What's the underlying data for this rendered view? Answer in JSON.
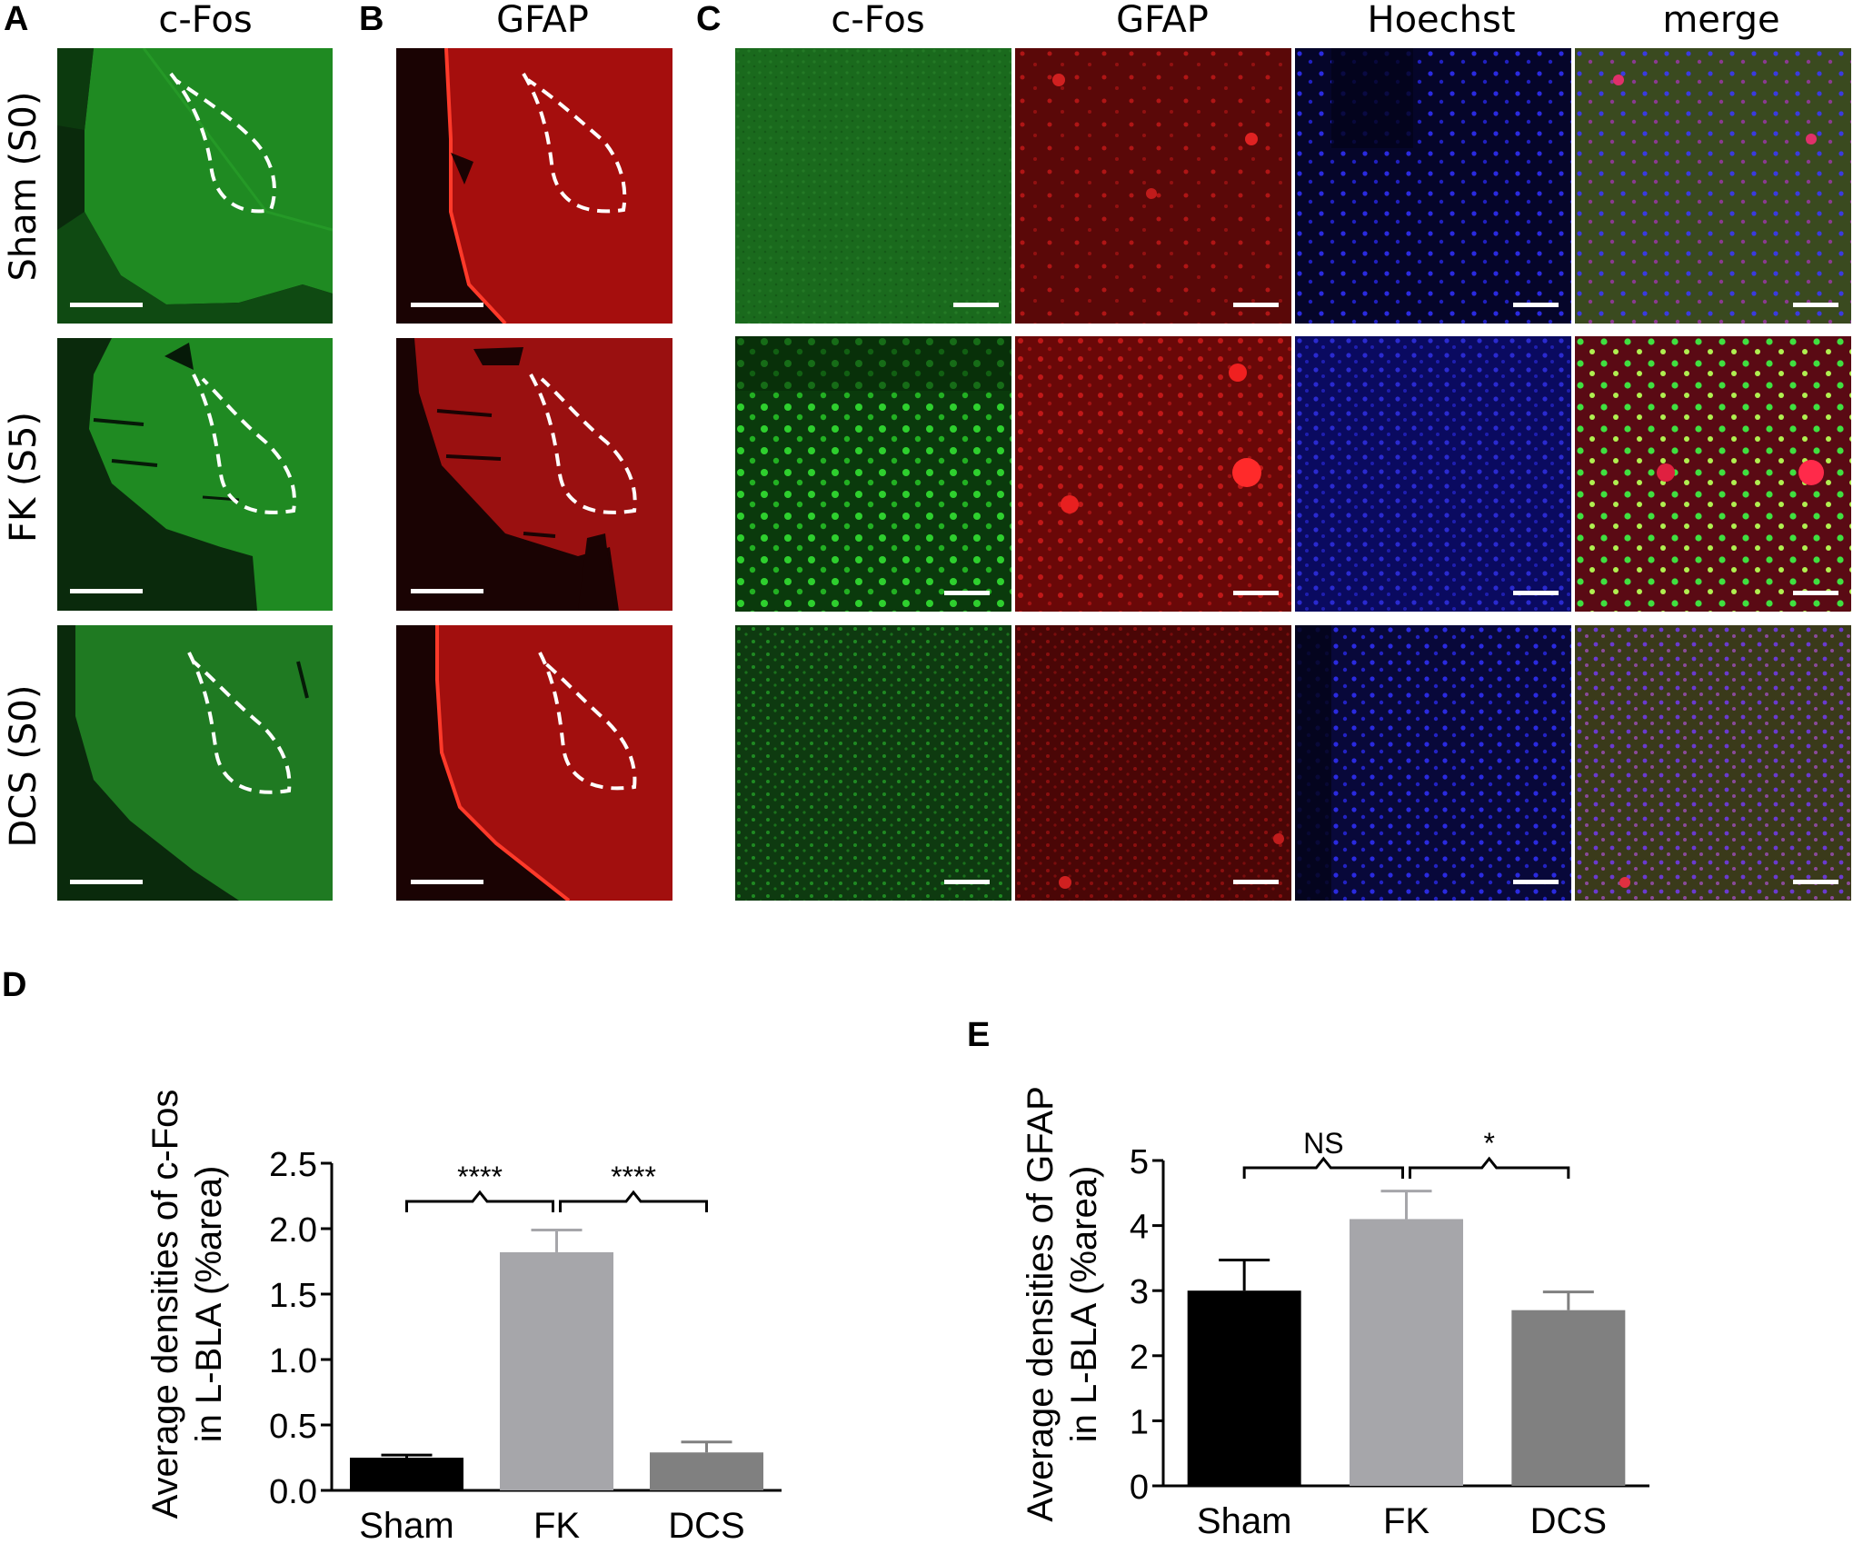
{
  "panel_labels": {
    "A": "A",
    "B": "B",
    "C": "C",
    "D": "D",
    "E": "E"
  },
  "column_titles": {
    "a": "c-Fos",
    "b": "GFAP",
    "c1": "c-Fos",
    "c2": "GFAP",
    "c3": "Hoechst",
    "c4": "merge"
  },
  "row_labels": [
    "Sham (S0)",
    "FK (S5)",
    "DCS (S0)"
  ],
  "colors": {
    "cfos": "#1f8a22",
    "gfap": "#b0100f",
    "hoechst": "#1a1aa8",
    "bar_sham": "#000000",
    "bar_fk": "#a6a6aa",
    "bar_dcs": "#808080"
  },
  "chart_data": [
    {
      "type": "bar",
      "panel": "D",
      "categories": [
        "Sham",
        "FK",
        "DCS"
      ],
      "values": [
        0.25,
        1.82,
        0.29
      ],
      "errors": [
        0.02,
        0.17,
        0.08
      ],
      "ylabel_line1": "Average densities of c-Fos",
      "ylabel_line2": "in L-BLA (%area)",
      "ylim": [
        0,
        2.5
      ],
      "yticks": [
        "0.0",
        "0.5",
        "1.0",
        "1.5",
        "2.0",
        "2.5"
      ],
      "significance": [
        {
          "from": "Sham",
          "to": "FK",
          "label": "****"
        },
        {
          "from": "FK",
          "to": "DCS",
          "label": "****"
        }
      ]
    },
    {
      "type": "bar",
      "panel": "E",
      "categories": [
        "Sham",
        "FK",
        "DCS"
      ],
      "values": [
        3.0,
        4.1,
        2.7
      ],
      "errors": [
        0.47,
        0.43,
        0.28
      ],
      "ylabel_line1": "Average densities of GFAP",
      "ylabel_line2": "in L-BLA (%area)",
      "ylim": [
        0,
        5
      ],
      "yticks": [
        "0",
        "1",
        "2",
        "3",
        "4",
        "5"
      ],
      "significance": [
        {
          "from": "Sham",
          "to": "FK",
          "label": "NS"
        },
        {
          "from": "FK",
          "to": "DCS",
          "label": "*"
        }
      ]
    }
  ]
}
